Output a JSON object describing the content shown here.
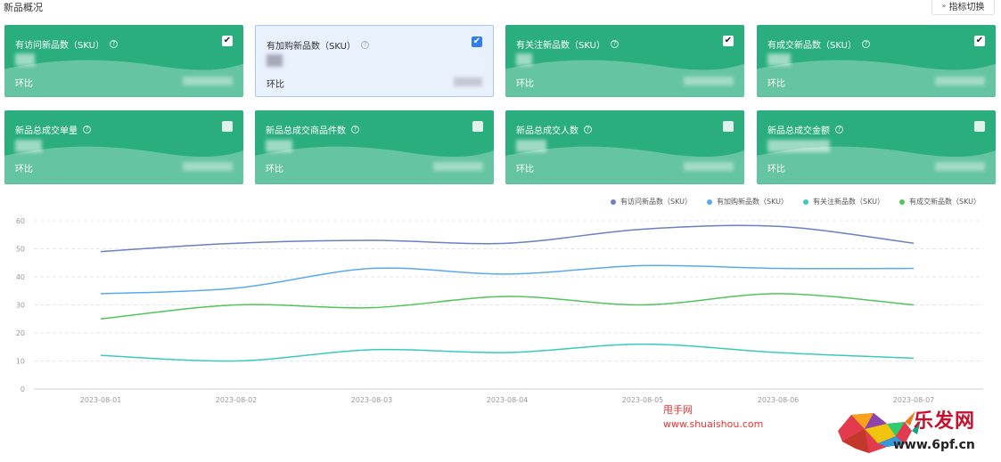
{
  "header": {
    "title": "新品概况",
    "switch_label": "指标切换"
  },
  "cards": [
    {
      "label": "有访问新品数（SKU）",
      "checked": true,
      "compare": "环比"
    },
    {
      "label": "有加购新品数（SKU）",
      "checked": true,
      "compare": "环比"
    },
    {
      "label": "有关注新品数（SKU）",
      "checked": true,
      "compare": "环比"
    },
    {
      "label": "有成交新品数（SKU）",
      "checked": true,
      "compare": "环比"
    },
    {
      "label": "新品总成交单量",
      "checked": false,
      "compare": "环比"
    },
    {
      "label": "新品总成交商品件数",
      "checked": false,
      "compare": "环比"
    },
    {
      "label": "新品总成交人数",
      "checked": false,
      "compare": "环比"
    },
    {
      "label": "新品总成交金额",
      "checked": false,
      "compare": "环比"
    }
  ],
  "chart_data": {
    "type": "line",
    "x": [
      "2023-08-01",
      "2023-08-02",
      "2023-08-03",
      "2023-08-04",
      "2023-08-05",
      "2023-08-06",
      "2023-08-07"
    ],
    "ylim": [
      0,
      60
    ],
    "yticks": [
      0,
      10,
      20,
      30,
      40,
      50,
      60
    ],
    "grid": true,
    "legend_position": "top-right",
    "series": [
      {
        "name": "有访问新品数（SKU）",
        "color": "#6b7fc4",
        "values": [
          49,
          52,
          53,
          52,
          57,
          58,
          52
        ]
      },
      {
        "name": "有加购新品数（SKU）",
        "color": "#5aa9f0",
        "values": [
          34,
          36,
          43,
          41,
          44,
          43,
          43
        ]
      },
      {
        "name": "有关注新品数（SKU）",
        "color": "#3cc8c0",
        "values": [
          12,
          10,
          14,
          13,
          16,
          13,
          11
        ]
      },
      {
        "name": "有成交新品数（SKU）",
        "color": "#52c45a",
        "values": [
          25,
          30,
          29,
          33,
          30,
          34,
          30
        ]
      }
    ]
  },
  "watermark": {
    "site_name": "甩手网",
    "site_url": "www.shuaishou.com",
    "brand": "乐发网",
    "brand_url": "www.6pf.cn"
  }
}
